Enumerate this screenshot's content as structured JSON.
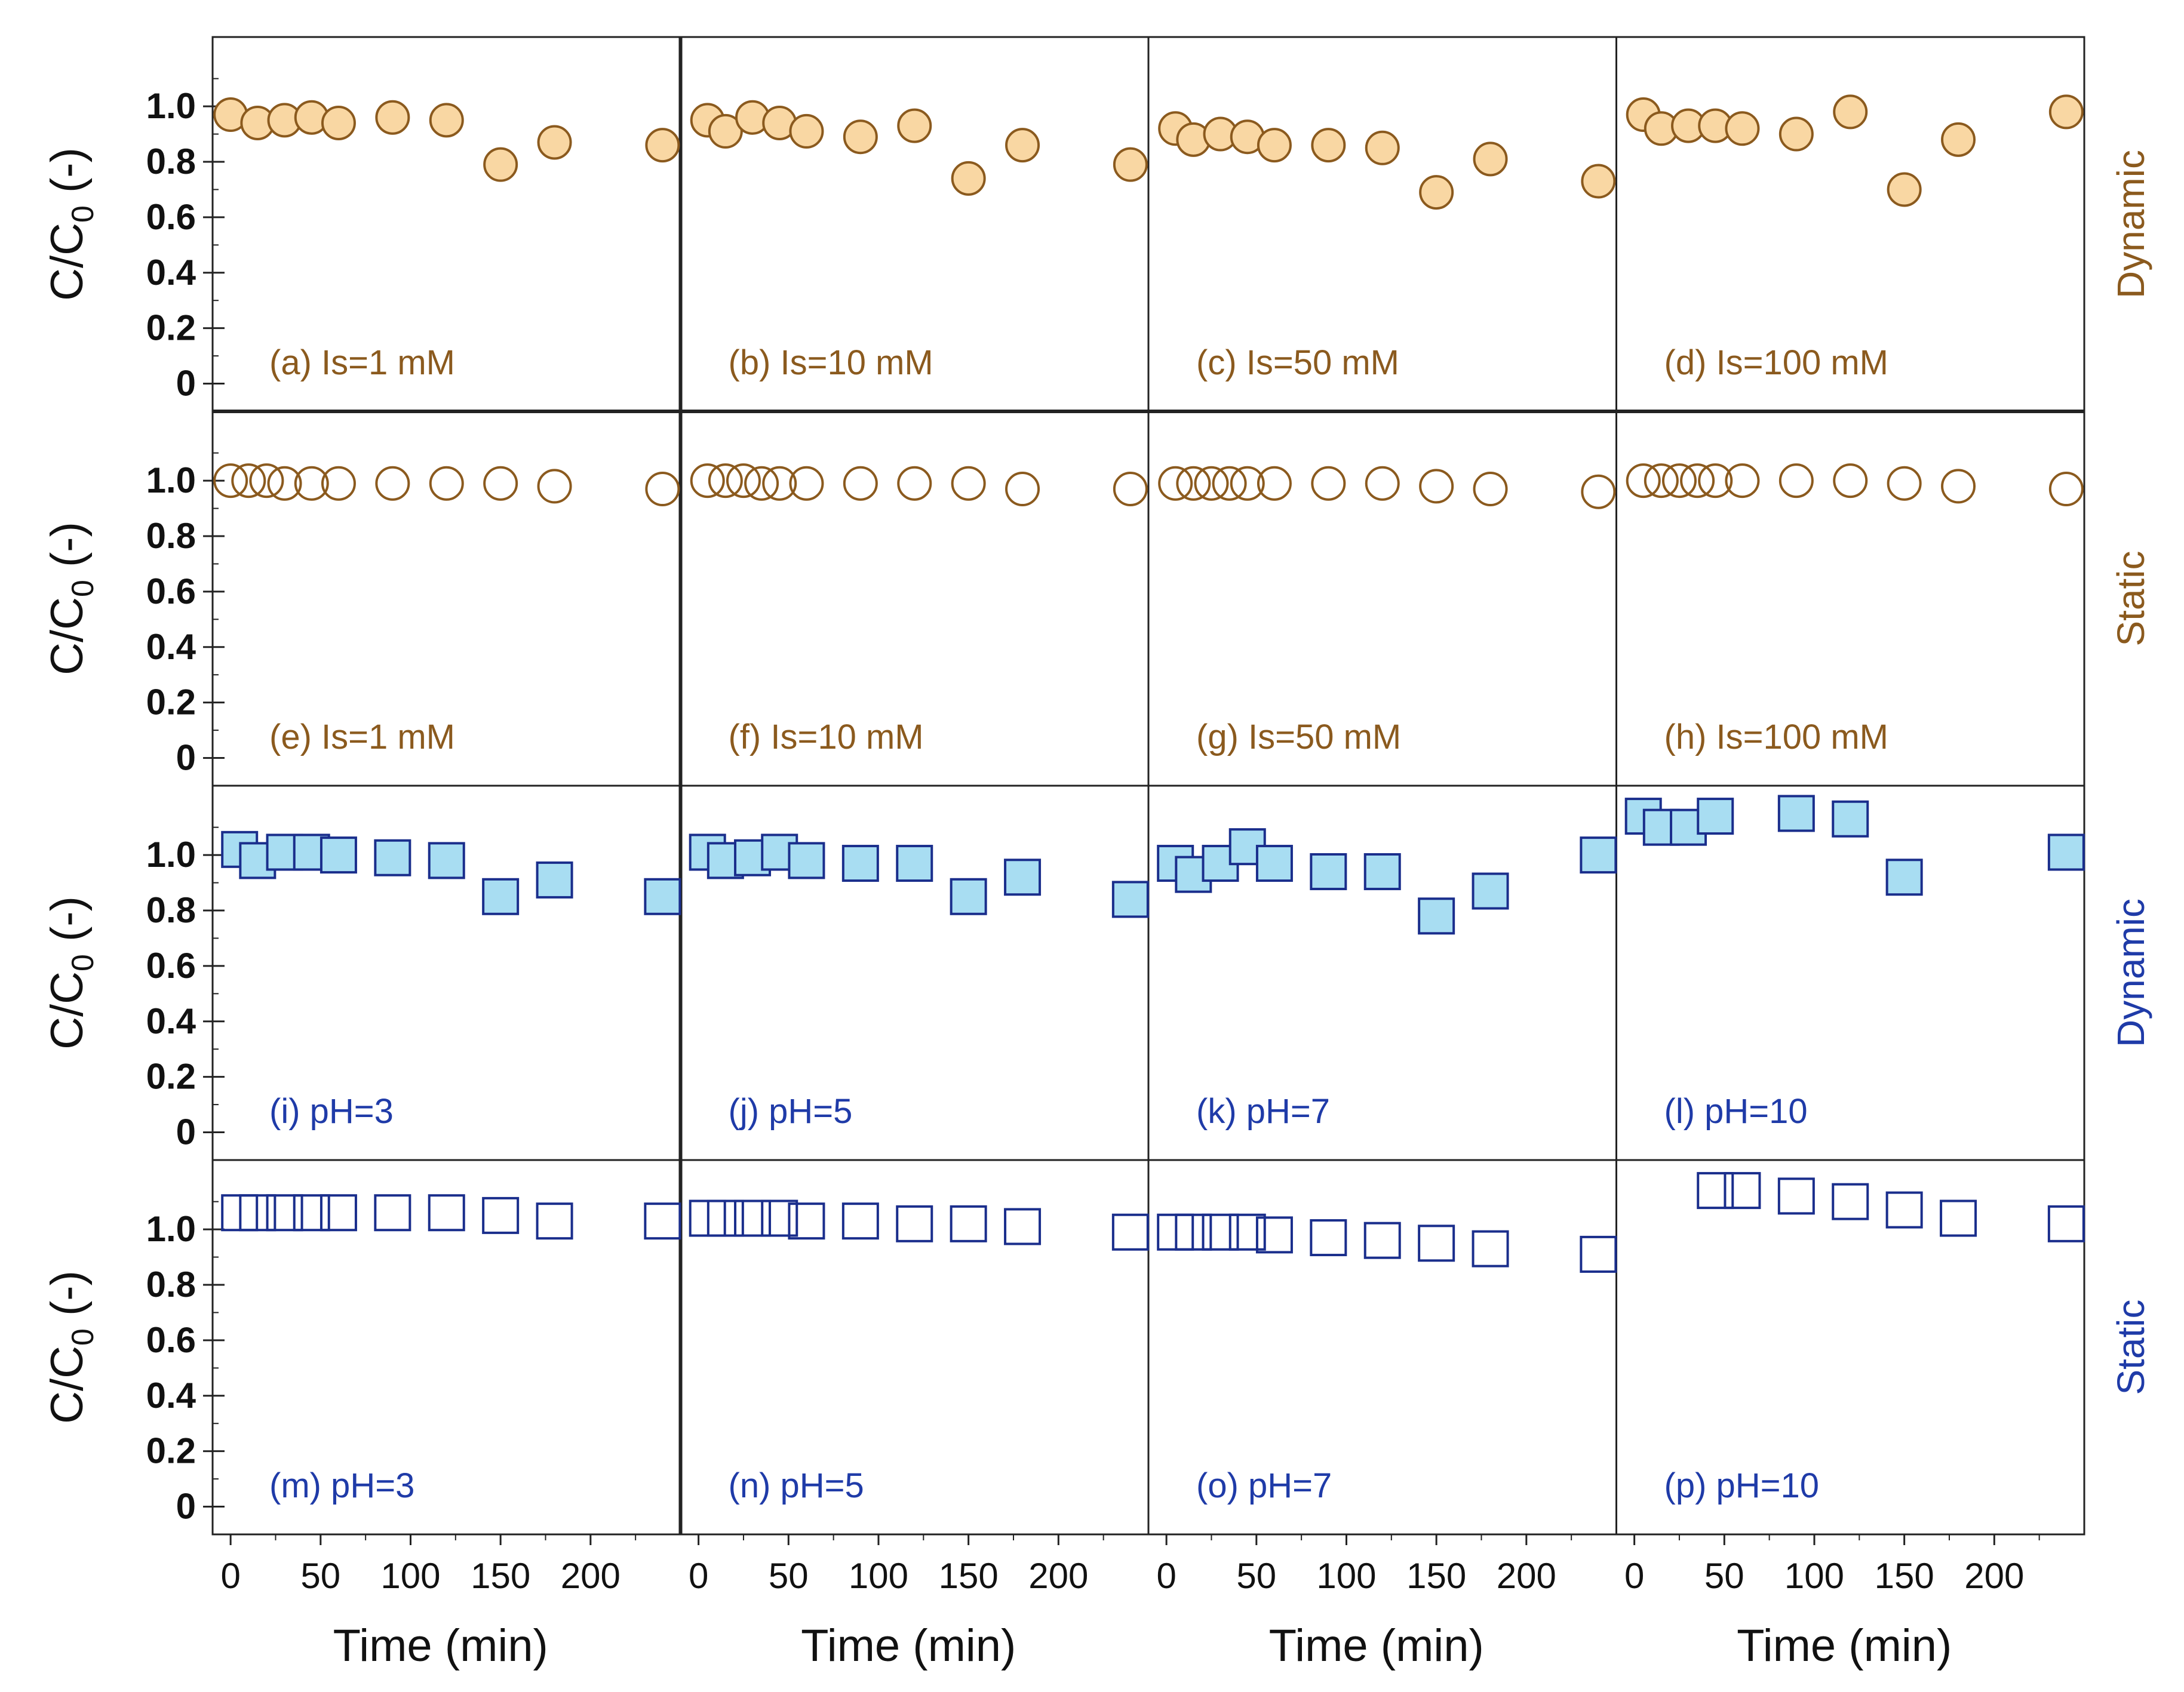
{
  "chart_data": {
    "type": "scatter",
    "xlabel": "Time (min)",
    "ylabel_main": "C/C",
    "ylabel_sub": "0",
    "ylabel_unit": "(-)",
    "ylim": [
      -0.1,
      1.25
    ],
    "xlim": [
      -10,
      250
    ],
    "yticks": [
      "0",
      "0.2",
      "0.4",
      "0.6",
      "0.8",
      "1.0"
    ],
    "xticks": [
      "0",
      "50",
      "100",
      "150",
      "200"
    ],
    "colors": {
      "orange_stroke": "#8B5A1E",
      "orange_fill": "#F9D7A3",
      "orange_text": "#8B5A1E",
      "blue_stroke": "#1A2E8C",
      "blue_fill": "#A8DDF2",
      "blue_text": "#1F3BA8"
    },
    "row_labels": [
      {
        "text": "Dynamic",
        "color": "#8B5A1E"
      },
      {
        "text": "Static",
        "color": "#8B5A1E"
      },
      {
        "text": "Dynamic",
        "color": "#1F3BA8"
      },
      {
        "text": "Static",
        "color": "#1F3BA8"
      }
    ],
    "rows": [
      {
        "marker": "circle",
        "filled": true,
        "color": "orange",
        "panels": [
          {
            "label": "(a) Is=1 mM",
            "x": [
              0,
              15,
              30,
              45,
              60,
              90,
              120,
              150,
              180,
              240
            ],
            "y": [
              0.97,
              0.94,
              0.95,
              0.96,
              0.94,
              0.96,
              0.95,
              0.79,
              0.87,
              0.86
            ]
          },
          {
            "label": "(b) Is=10 mM",
            "x": [
              5,
              15,
              30,
              45,
              60,
              90,
              120,
              150,
              180,
              240
            ],
            "y": [
              0.95,
              0.91,
              0.96,
              0.94,
              0.91,
              0.89,
              0.93,
              0.74,
              0.86,
              0.79
            ]
          },
          {
            "label": "(c) Is=50 mM",
            "x": [
              5,
              15,
              30,
              45,
              60,
              90,
              120,
              150,
              180,
              240
            ],
            "y": [
              0.92,
              0.88,
              0.9,
              0.89,
              0.86,
              0.86,
              0.85,
              0.69,
              0.81,
              0.73
            ]
          },
          {
            "label": "(d) Is=100 mM",
            "x": [
              5,
              15,
              30,
              45,
              60,
              90,
              120,
              150,
              180,
              240
            ],
            "y": [
              0.97,
              0.92,
              0.93,
              0.93,
              0.92,
              0.9,
              0.98,
              0.7,
              0.88,
              0.98
            ]
          }
        ]
      },
      {
        "marker": "circle",
        "filled": false,
        "color": "orange",
        "panels": [
          {
            "label": "(e) Is=1 mM",
            "x": [
              0,
              10,
              20,
              30,
              45,
              60,
              90,
              120,
              150,
              180,
              240
            ],
            "y": [
              1.0,
              1.0,
              1.0,
              0.99,
              0.99,
              0.99,
              0.99,
              0.99,
              0.99,
              0.98,
              0.97
            ]
          },
          {
            "label": "(f) Is=10 mM",
            "x": [
              5,
              15,
              25,
              35,
              45,
              60,
              90,
              120,
              150,
              180,
              240
            ],
            "y": [
              1.0,
              1.0,
              1.0,
              0.99,
              0.99,
              0.99,
              0.99,
              0.99,
              0.99,
              0.97,
              0.97
            ]
          },
          {
            "label": "(g) Is=50 mM",
            "x": [
              5,
              15,
              25,
              35,
              45,
              60,
              90,
              120,
              150,
              180,
              240
            ],
            "y": [
              0.99,
              0.99,
              0.99,
              0.99,
              0.99,
              0.99,
              0.99,
              0.99,
              0.98,
              0.97,
              0.96
            ]
          },
          {
            "label": "(h) Is=100 mM",
            "x": [
              5,
              15,
              25,
              35,
              45,
              60,
              90,
              120,
              150,
              180,
              240
            ],
            "y": [
              1.0,
              1.0,
              1.0,
              1.0,
              1.0,
              1.0,
              1.0,
              1.0,
              0.99,
              0.98,
              0.97
            ]
          }
        ]
      },
      {
        "marker": "square",
        "filled": true,
        "color": "blue",
        "panels": [
          {
            "label": "(i) pH=3",
            "x": [
              5,
              15,
              30,
              45,
              60,
              90,
              120,
              150,
              180,
              240
            ],
            "y": [
              1.02,
              0.98,
              1.01,
              1.01,
              1.0,
              0.99,
              0.98,
              0.85,
              0.91,
              0.85
            ]
          },
          {
            "label": "(j) pH=5",
            "x": [
              5,
              15,
              30,
              45,
              60,
              90,
              120,
              150,
              180,
              240
            ],
            "y": [
              1.01,
              0.98,
              0.99,
              1.01,
              0.98,
              0.97,
              0.97,
              0.85,
              0.92,
              0.84
            ]
          },
          {
            "label": "(k) pH=7",
            "x": [
              5,
              15,
              30,
              45,
              60,
              90,
              120,
              150,
              180,
              240
            ],
            "y": [
              0.97,
              0.93,
              0.97,
              1.03,
              0.97,
              0.94,
              0.94,
              0.78,
              0.87,
              1.0
            ]
          },
          {
            "label": "(l) pH=10",
            "x": [
              5,
              15,
              30,
              45,
              90,
              120,
              150,
              240
            ],
            "y": [
              1.14,
              1.1,
              1.1,
              1.14,
              1.15,
              1.13,
              0.92,
              1.01
            ]
          }
        ]
      },
      {
        "marker": "square",
        "filled": false,
        "color": "blue",
        "panels": [
          {
            "label": "(m) pH=3",
            "x": [
              5,
              15,
              30,
              45,
              60,
              90,
              120,
              150,
              180,
              240
            ],
            "y": [
              1.06,
              1.06,
              1.06,
              1.06,
              1.06,
              1.06,
              1.06,
              1.05,
              1.03,
              1.03
            ]
          },
          {
            "label": "(n) pH=5",
            "x": [
              5,
              15,
              30,
              45,
              60,
              90,
              120,
              150,
              180,
              240
            ],
            "y": [
              1.04,
              1.04,
              1.04,
              1.04,
              1.03,
              1.03,
              1.02,
              1.02,
              1.01,
              0.99
            ]
          },
          {
            "label": "(o) pH=7",
            "x": [
              5,
              15,
              30,
              45,
              60,
              90,
              120,
              150,
              180,
              240
            ],
            "y": [
              0.99,
              0.99,
              0.99,
              0.99,
              0.98,
              0.97,
              0.96,
              0.95,
              0.93,
              0.91
            ]
          },
          {
            "label": "(p) pH=10",
            "x": [
              45,
              60,
              90,
              120,
              150,
              180,
              240
            ],
            "y": [
              1.14,
              1.14,
              1.12,
              1.1,
              1.07,
              1.04,
              1.02
            ]
          }
        ]
      }
    ]
  }
}
